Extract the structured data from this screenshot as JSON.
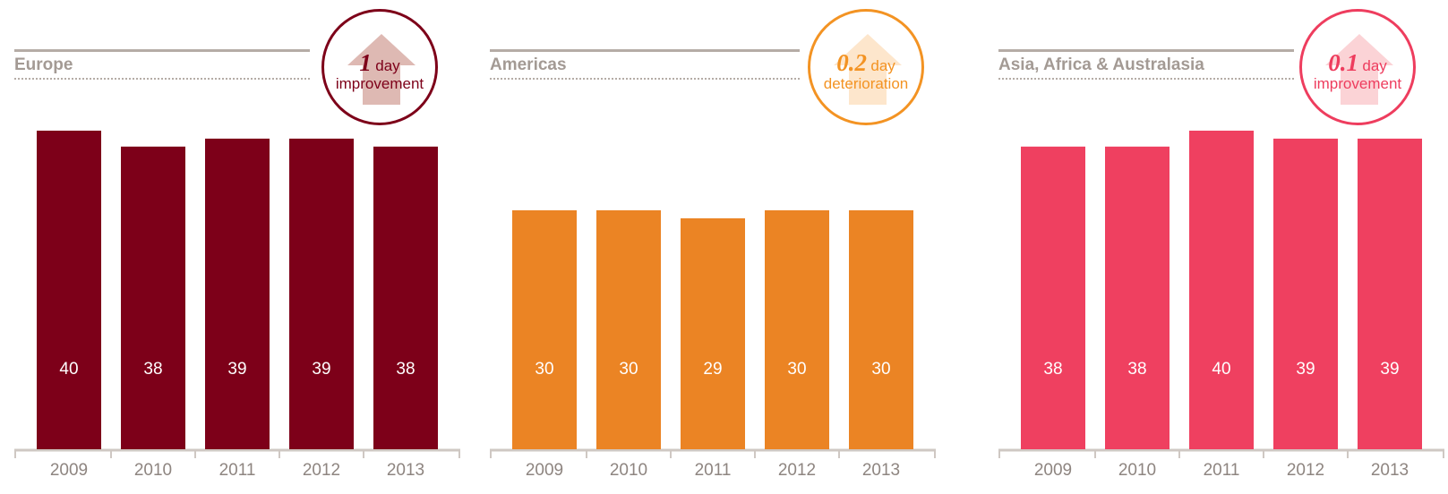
{
  "chart_data": [
    {
      "type": "bar",
      "title": "Europe",
      "categories": [
        "2009",
        "2010",
        "2011",
        "2012",
        "2013"
      ],
      "values": [
        40,
        38,
        39,
        39,
        38
      ],
      "bar_color": "#7d0019",
      "badge": {
        "value": "1",
        "unit": "day",
        "label": "improvement",
        "color": "#7d0019",
        "arrow_color": "#deb9b3"
      }
    },
    {
      "type": "bar",
      "title": "Americas",
      "categories": [
        "2009",
        "2010",
        "2011",
        "2012",
        "2013"
      ],
      "values": [
        30,
        30,
        29,
        30,
        30
      ],
      "bar_color": "#eb8424",
      "badge": {
        "value": "0.2",
        "unit": "day",
        "label": "deterioration",
        "color": "#f39323",
        "arrow_color": "#fde6cc"
      }
    },
    {
      "type": "bar",
      "title": "Asia, Africa & Australasia",
      "categories": [
        "2009",
        "2010",
        "2011",
        "2012",
        "2013"
      ],
      "values": [
        38,
        38,
        40,
        39,
        39
      ],
      "bar_color": "#ef4060",
      "badge": {
        "value": "0.1",
        "unit": "day",
        "label": "improvement",
        "color": "#ee3d5e",
        "arrow_color": "#fbd3d6"
      }
    }
  ]
}
